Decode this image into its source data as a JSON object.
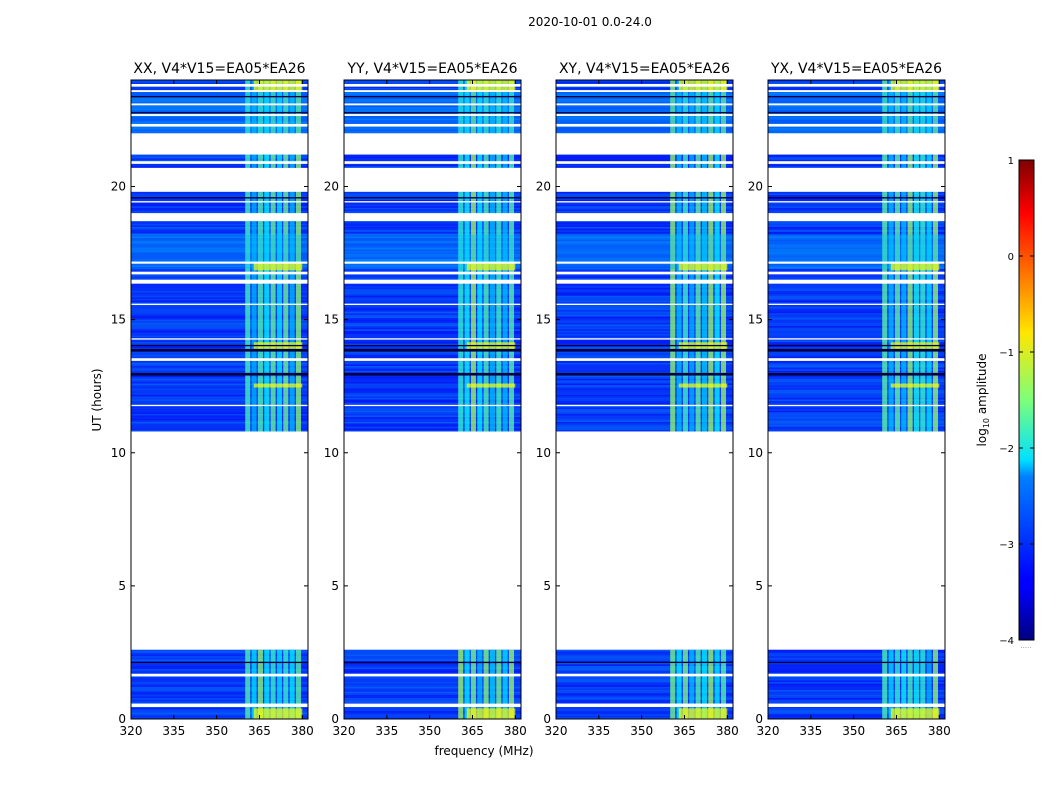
{
  "chart_data": {
    "type": "heatmap",
    "suptitle": "2020-10-01 0.0-24.0",
    "xlabel": "frequency (MHz)",
    "ylabel": "UT (hours)",
    "xlim": [
      320,
      382
    ],
    "ylim": [
      0,
      24
    ],
    "x_ticks": [
      320,
      335,
      350,
      365,
      380
    ],
    "y_ticks": [
      0,
      5,
      10,
      15,
      20
    ],
    "colorbar": {
      "label": "log10 amplitude",
      "label_base": "log",
      "label_sub": "10",
      "label_rest": " amplitude",
      "range": [
        -4,
        1
      ],
      "ticks": [
        -4,
        -3,
        -2,
        -1,
        0,
        1
      ],
      "colormap": "jet",
      "footer": "....."
    },
    "data_coverage_hours": [
      [
        0,
        2.6
      ],
      [
        10.8,
        24
      ]
    ],
    "rfi_band_mhz": [
      360,
      380
    ],
    "panels": [
      {
        "title": "XX, V4*V15=EA05*EA26",
        "polarization": "XX"
      },
      {
        "title": "YY, V4*V15=EA05*EA26",
        "polarization": "YY"
      },
      {
        "title": "XY, V4*V15=EA05*EA26",
        "polarization": "XY"
      },
      {
        "title": "YX, V4*V15=EA05*EA26",
        "polarization": "YX"
      }
    ]
  }
}
